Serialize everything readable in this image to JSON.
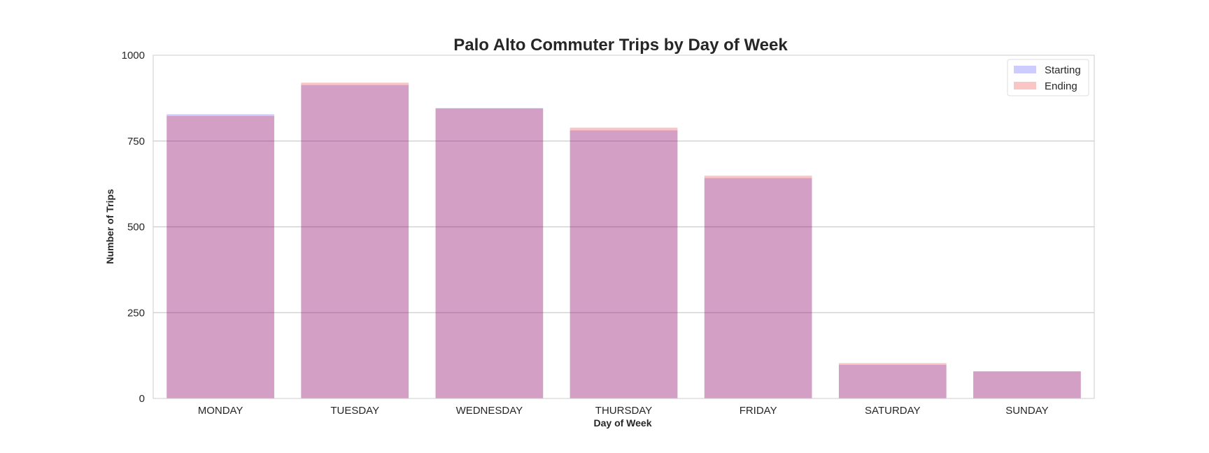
{
  "chart_data": {
    "type": "bar",
    "title": "Palo Alto Commuter Trips by Day of Week",
    "xlabel": "Day of Week",
    "ylabel": "Number of Trips",
    "categories": [
      "MONDAY",
      "TUESDAY",
      "WEDNESDAY",
      "THURSDAY",
      "FRIDAY",
      "SATURDAY",
      "SUNDAY"
    ],
    "series": [
      {
        "name": "Starting",
        "color": "#0000ff",
        "opacity": 0.2,
        "values": [
          828,
          913,
          846,
          781,
          642,
          98,
          79
        ]
      },
      {
        "name": "Ending",
        "color": "#e61919",
        "opacity": 0.25,
        "values": [
          823,
          920,
          845,
          789,
          649,
          103,
          79
        ]
      }
    ],
    "ylim": [
      0,
      1000
    ],
    "yticks": [
      0,
      250,
      500,
      750,
      1000
    ],
    "grid": "horizontal",
    "legend_position": "top-right",
    "overlay": true
  }
}
